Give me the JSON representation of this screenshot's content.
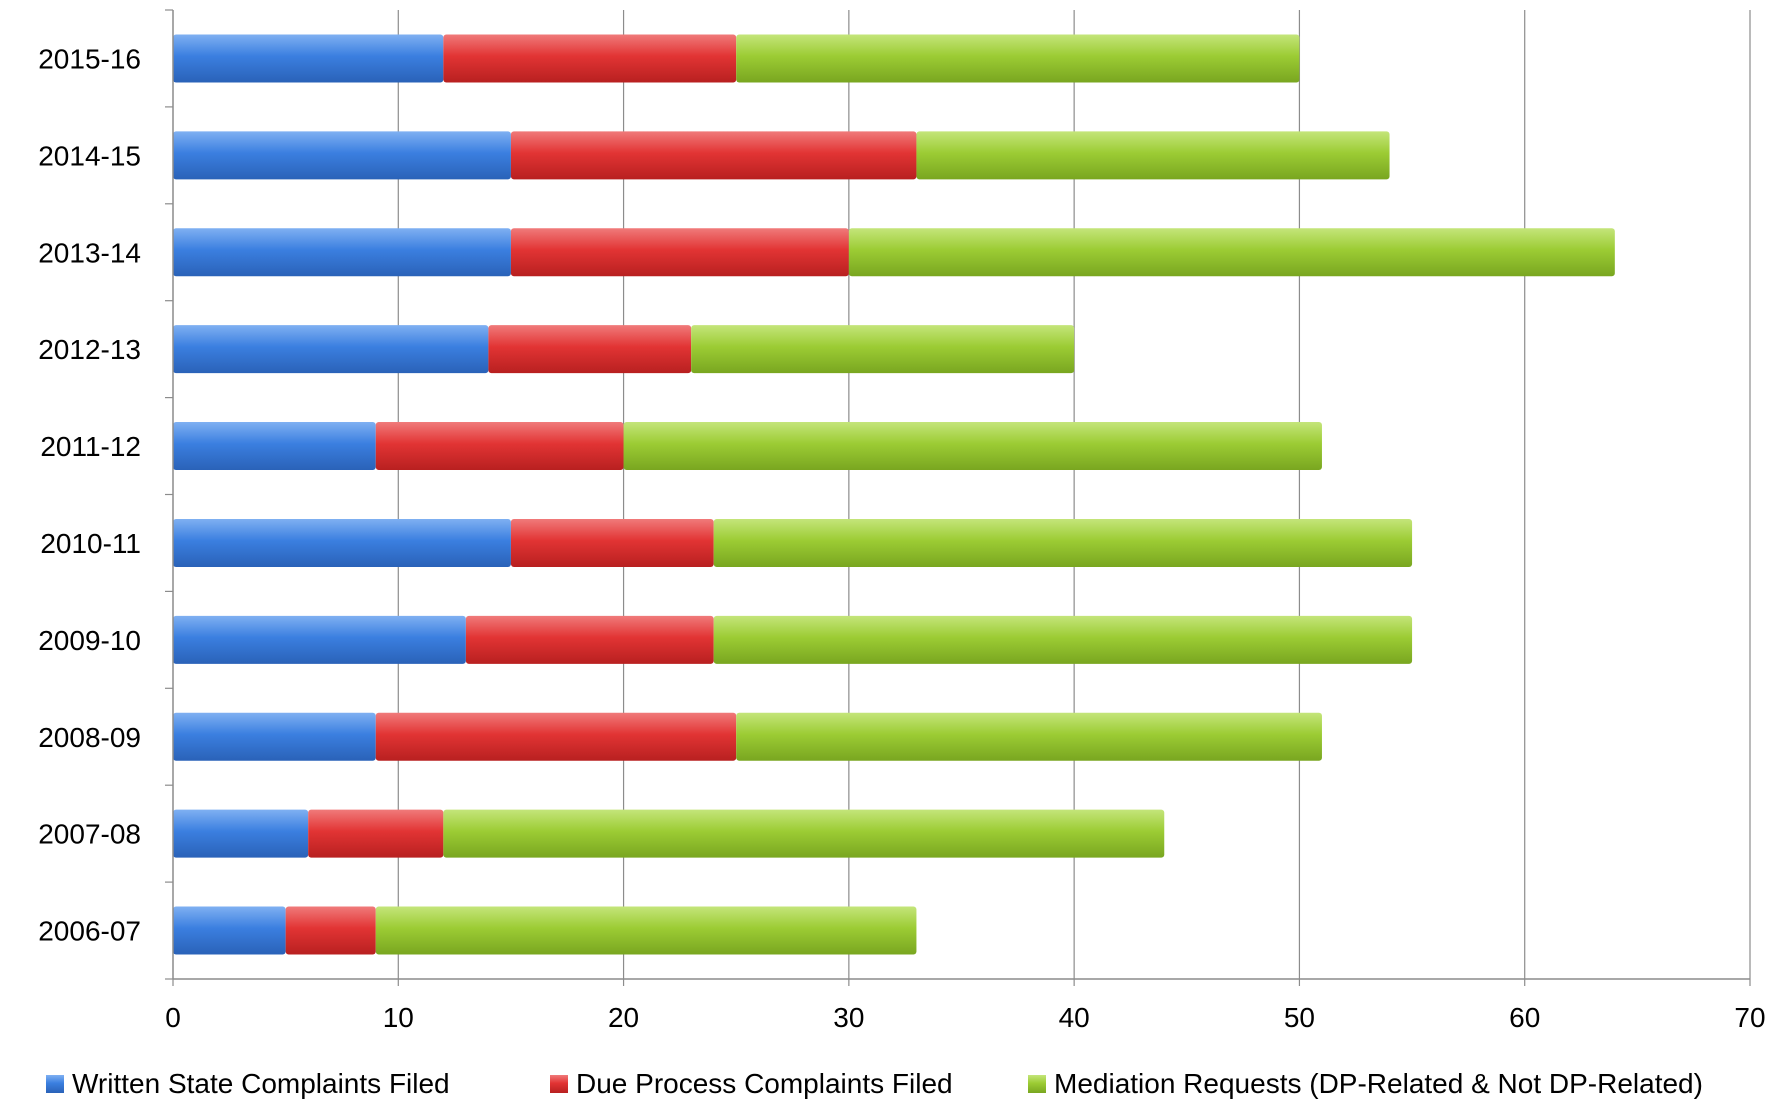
{
  "chart_data": {
    "type": "bar",
    "orientation": "horizontal",
    "stacked": true,
    "title": "",
    "xlabel": "",
    "ylabel": "",
    "xlim": [
      0,
      70
    ],
    "x_ticks": [
      0,
      10,
      20,
      30,
      40,
      50,
      60,
      70
    ],
    "grid": true,
    "legend_position": "bottom",
    "categories": [
      "2015-16",
      "2014-15",
      "2013-14",
      "2012-13",
      "2011-12",
      "2010-11",
      "2009-10",
      "2008-09",
      "2007-08",
      "2006-07"
    ],
    "series": [
      {
        "name": "Written State Complaints Filed",
        "color": "#3b7fe0",
        "values": [
          12,
          15,
          15,
          14,
          9,
          15,
          13,
          9,
          6,
          5
        ]
      },
      {
        "name": "Due Process Complaints Filed",
        "color": "#e23434",
        "values": [
          13,
          18,
          15,
          9,
          11,
          9,
          11,
          16,
          6,
          4
        ]
      },
      {
        "name": "Mediation Requests (DP-Related & Not DP-Related)",
        "color": "#9ccc34",
        "values": [
          25,
          21,
          34,
          17,
          31,
          31,
          31,
          26,
          32,
          24
        ]
      }
    ]
  }
}
